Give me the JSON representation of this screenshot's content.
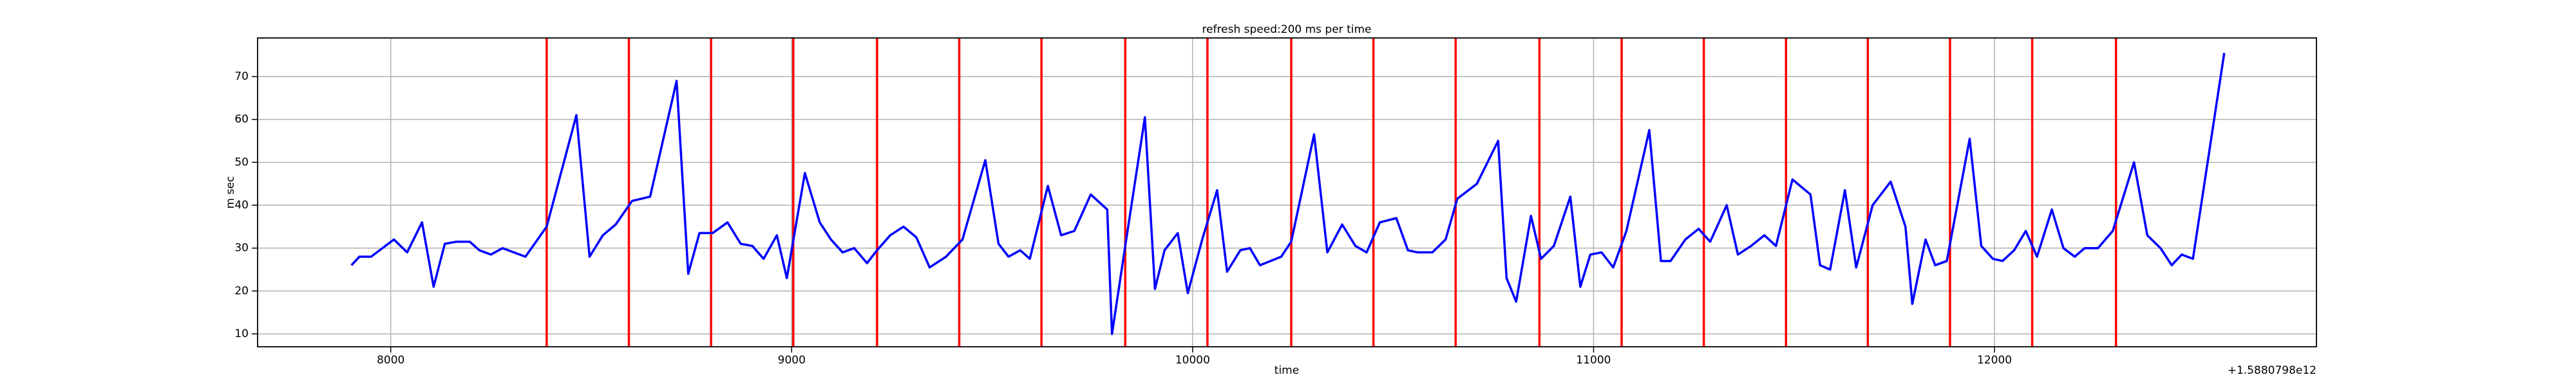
{
  "chart_data": {
    "type": "line",
    "title": "refresh speed:200 ms per time",
    "xlabel": "time",
    "ylabel": "m sec",
    "x_offset_label": "+1.5880798e12",
    "x": [
      7902,
      7922,
      7951,
      8008,
      8041,
      8078,
      8107,
      8135,
      8164,
      8197,
      8221,
      8250,
      8279,
      8307,
      8336,
      8389,
      8463,
      8496,
      8529,
      8561,
      8602,
      8647,
      8713,
      8742,
      8770,
      8803,
      8840,
      8873,
      8902,
      8930,
      8963,
      8988,
      9033,
      9070,
      9098,
      9127,
      9156,
      9188,
      9213,
      9246,
      9279,
      9311,
      9344,
      9385,
      9426,
      9483,
      9516,
      9541,
      9570,
      9594,
      9639,
      9672,
      9705,
      9746,
      9787,
      9799,
      9836,
      9881,
      9906,
      9930,
      9963,
      9988,
      10024,
      10061,
      10086,
      10119,
      10143,
      10168,
      10221,
      10246,
      10303,
      10336,
      10373,
      10406,
      10434,
      10467,
      10508,
      10537,
      10561,
      10598,
      10631,
      10660,
      10709,
      10762,
      10783,
      10807,
      10844,
      10869,
      10901,
      10942,
      10967,
      10992,
      11020,
      11049,
      11082,
      11139,
      11168,
      11192,
      11229,
      11262,
      11291,
      11332,
      11360,
      11393,
      11426,
      11455,
      11496,
      11541,
      11565,
      11590,
      11627,
      11655,
      11696,
      11741,
      11778,
      11795,
      11828,
      11852,
      11881,
      11938,
      11967,
      11996,
      12020,
      12049,
      12078,
      12106,
      12143,
      12172,
      12200,
      12225,
      12258,
      12295,
      12348,
      12381,
      12414,
      12442,
      12467,
      12495,
      12573
    ],
    "series": [
      {
        "color": "#0000ff",
        "values": [
          26,
          28,
          28,
          32,
          29,
          36,
          21,
          31,
          31.5,
          31.5,
          29.5,
          28.5,
          30,
          29,
          28,
          35,
          61,
          28,
          33,
          35.5,
          41,
          42,
          69,
          24,
          33.5,
          33.5,
          36,
          31,
          30.5,
          27.5,
          33,
          23,
          47.5,
          36,
          32,
          29,
          30,
          26.5,
          29.5,
          33,
          35,
          32.5,
          25.5,
          28,
          32,
          50.5,
          31,
          28,
          29.5,
          27.5,
          44.5,
          33,
          34,
          42.5,
          39,
          10,
          33,
          60.5,
          20.5,
          29.5,
          33.5,
          19.5,
          32,
          43.5,
          24.5,
          29.5,
          30,
          26,
          28,
          31.5,
          56.5,
          29,
          35.5,
          30.5,
          29,
          36,
          37,
          29.5,
          29,
          29,
          32,
          41.5,
          45,
          55,
          23,
          17.5,
          37.5,
          27.5,
          30.5,
          42,
          21,
          28.5,
          29,
          25.5,
          34,
          57.5,
          27,
          27,
          32,
          34.5,
          31.5,
          40,
          28.5,
          30.5,
          33,
          30.5,
          46,
          42.5,
          26,
          25,
          43.5,
          25.5,
          40,
          45.5,
          35,
          17,
          32,
          26,
          27,
          55.5,
          30.5,
          27.5,
          27,
          29.5,
          34,
          28,
          39,
          30,
          28,
          30,
          30,
          34,
          50,
          33,
          30,
          26,
          28.5,
          27.5,
          75.5
        ]
      }
    ],
    "vlines": {
      "color": "#ff0000",
      "x": [
        8389,
        8594,
        8799,
        9004,
        9213,
        9418,
        9623,
        9832,
        10037,
        10246,
        10451,
        10656,
        10865,
        11070,
        11275,
        11480,
        11684,
        11889,
        12094,
        12303
      ]
    },
    "xlim": [
      7668,
      12803
    ],
    "xticks": [
      8000,
      9000,
      10000,
      11000,
      12000
    ],
    "ylim": [
      7,
      79
    ],
    "yticks": [
      10,
      20,
      30,
      40,
      50,
      60,
      70
    ],
    "grid": true
  }
}
